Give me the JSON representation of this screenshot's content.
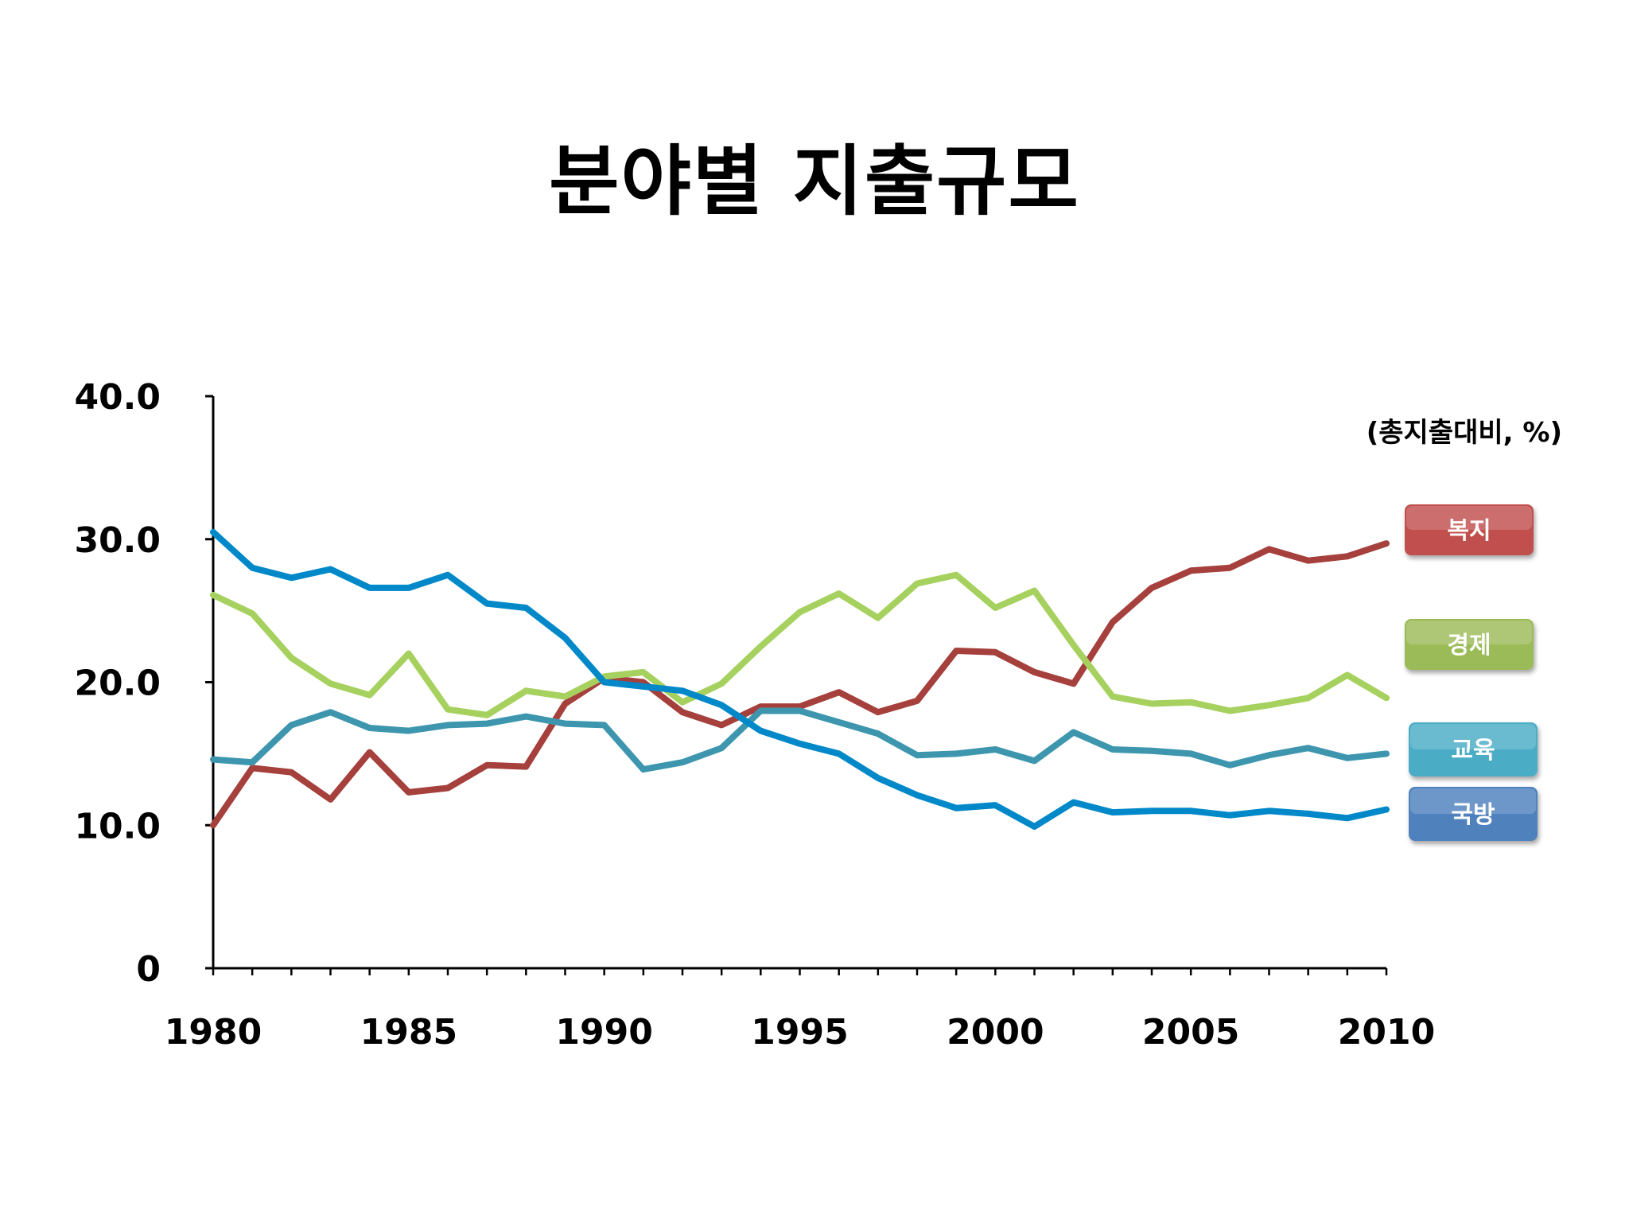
{
  "chart_data": {
    "type": "line",
    "title": "분야별 지출규모",
    "unit_label": "(총지출대비, %)",
    "xlabel": "",
    "ylabel": "",
    "x": [
      1980,
      1981,
      1982,
      1983,
      1984,
      1985,
      1986,
      1987,
      1988,
      1989,
      1990,
      1991,
      1992,
      1993,
      1994,
      1995,
      1996,
      1997,
      1998,
      1999,
      2000,
      2001,
      2002,
      2003,
      2004,
      2005,
      2006,
      2007,
      2008,
      2009,
      2010
    ],
    "x_tick_labels": [
      "1980",
      "1985",
      "1990",
      "1995",
      "2000",
      "2005",
      "2010"
    ],
    "x_tick_values": [
      1980,
      1985,
      1990,
      1995,
      2000,
      2005,
      2010
    ],
    "y_tick_labels": [
      "0",
      "10.0",
      "20.0",
      "30.0",
      "40.0"
    ],
    "y_tick_values": [
      0,
      10,
      20,
      30,
      40
    ],
    "xlim": [
      1980,
      2010
    ],
    "ylim": [
      0,
      40
    ],
    "grid": false,
    "legend_position": "right",
    "series": [
      {
        "name": "복지",
        "color": "#A5403C",
        "legend_color": "#C0504D",
        "values": [
          10.0,
          14.0,
          13.7,
          11.8,
          15.1,
          12.3,
          12.6,
          14.2,
          14.1,
          18.5,
          20.3,
          20.0,
          17.9,
          17.0,
          18.3,
          18.3,
          19.3,
          17.9,
          18.7,
          22.2,
          22.1,
          20.7,
          19.9,
          24.2,
          26.6,
          27.8,
          28.0,
          29.3,
          28.5,
          28.8,
          29.7
        ]
      },
      {
        "name": "경제",
        "color": "#A6D15F",
        "legend_color": "#9BBB59",
        "values": [
          26.1,
          24.8,
          21.7,
          19.9,
          19.1,
          22.0,
          18.1,
          17.7,
          19.4,
          19.0,
          20.4,
          20.7,
          18.6,
          19.9,
          22.5,
          24.9,
          26.2,
          24.5,
          26.9,
          27.5,
          25.2,
          26.4,
          22.6,
          19.0,
          18.5,
          18.6,
          18.0,
          18.4,
          18.9,
          20.5,
          18.9
        ]
      },
      {
        "name": "교육",
        "color": "#3D96AE",
        "legend_color": "#4BACC6",
        "values": [
          14.6,
          14.4,
          17.0,
          17.9,
          16.8,
          16.6,
          17.0,
          17.1,
          17.6,
          17.1,
          17.0,
          13.9,
          14.4,
          15.4,
          18.0,
          18.0,
          17.2,
          16.4,
          14.9,
          15.0,
          15.3,
          14.5,
          16.5,
          15.3,
          15.2,
          15.0,
          14.2,
          14.9,
          15.4,
          14.7,
          15.0
        ]
      },
      {
        "name": "국방",
        "color": "#0088C9",
        "legend_color": "#4F81BD",
        "values": [
          30.5,
          28.0,
          27.3,
          27.9,
          26.6,
          26.6,
          27.5,
          25.5,
          25.2,
          23.1,
          20.0,
          19.7,
          19.4,
          18.4,
          16.6,
          15.7,
          15.0,
          13.3,
          12.1,
          11.2,
          11.4,
          9.9,
          11.6,
          10.9,
          11.0,
          11.0,
          10.7,
          11.0,
          10.8,
          10.5,
          11.1
        ]
      }
    ]
  }
}
